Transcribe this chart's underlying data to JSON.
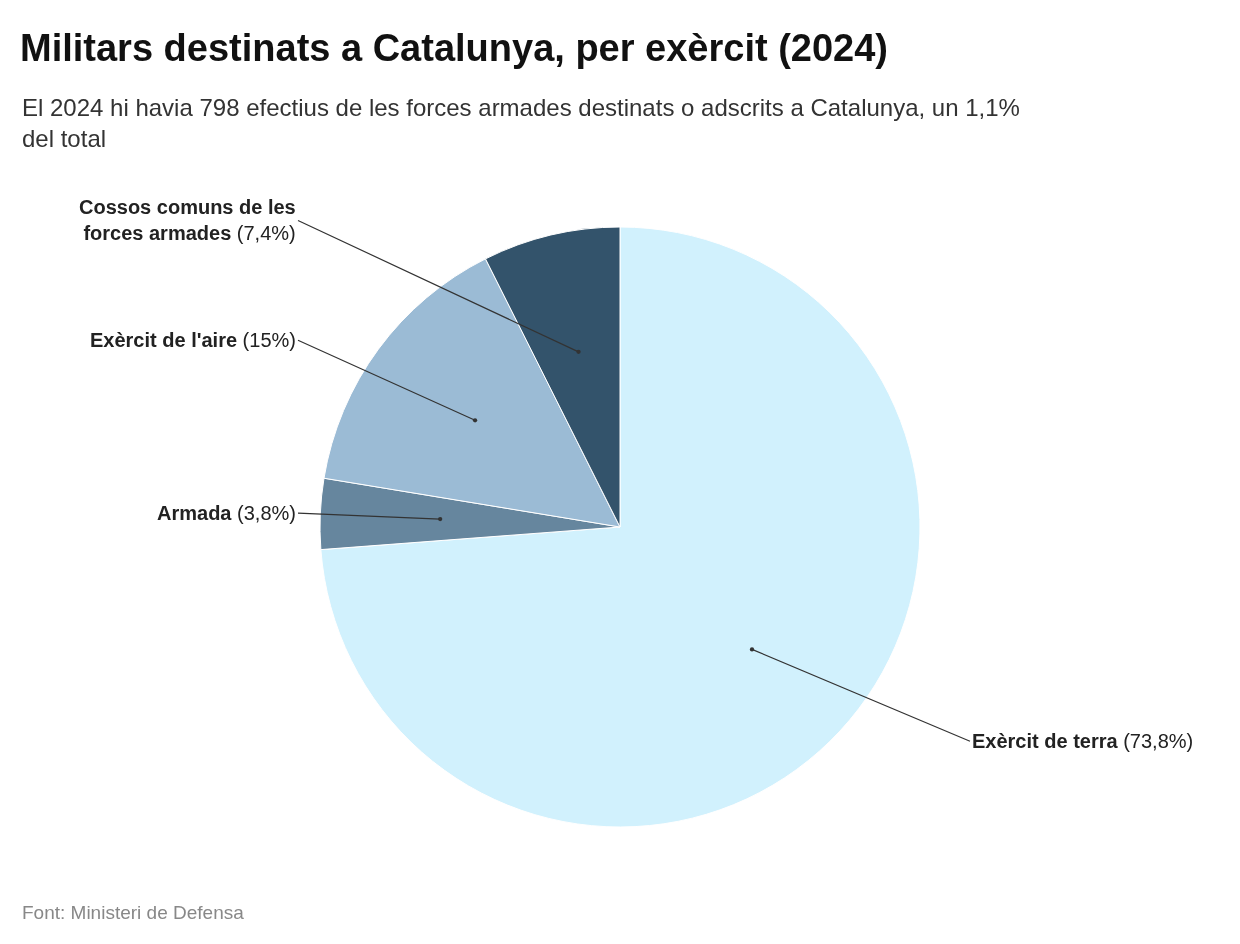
{
  "chart_data": {
    "type": "pie",
    "title": "Militars destinats a Catalunya, per exèrcit (2024)",
    "subtitle": "El 2024 hi havia 798 efectius de les forces armades destinats o adscrits a Catalunya, un 1,1% del total",
    "categories": [
      "Exèrcit de terra",
      "Armada",
      "Exèrcit de l'aire",
      "Cossos comuns de les forces armades"
    ],
    "values": [
      73.8,
      3.8,
      15,
      7.4
    ],
    "value_labels": [
      "(73,8%)",
      "(3,8%)",
      "(15%)",
      "(7,4%)"
    ],
    "colors": [
      "#d1f1fd",
      "#66869e",
      "#9bbbd5",
      "#33536b"
    ],
    "annotations": [
      "Font: Ministeri de Defensa"
    ]
  }
}
